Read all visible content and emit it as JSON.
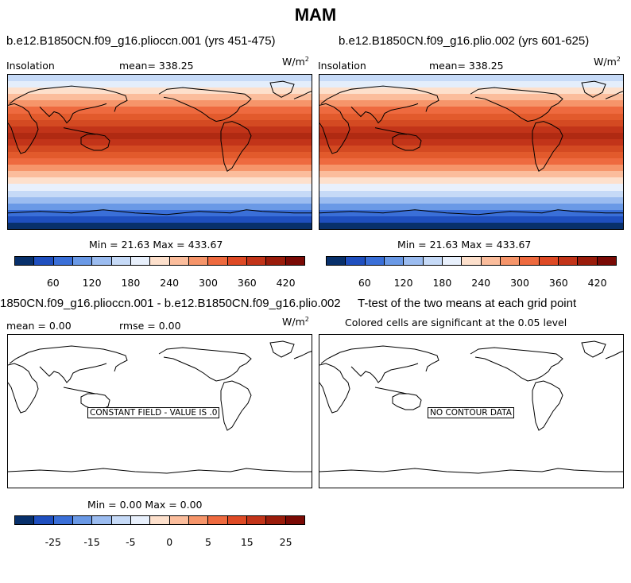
{
  "title": "MAM",
  "panels": {
    "p1": {
      "title": "b.e12.B1850CN.f09_g16.plioccn.001 (yrs 451-475)",
      "var": "Insolation",
      "mean": "mean=  338.25",
      "units": "W/m",
      "units_sup": "2",
      "minmax": "Min =   21.63 Max = 433.67"
    },
    "p2": {
      "title": "b.e12.B1850CN.f09_g16.plio.002 (yrs 601-625)",
      "var": "Insolation",
      "mean": "mean=  338.25",
      "units": "W/m",
      "units_sup": "2",
      "minmax": "Min =   21.63 Max = 433.67"
    },
    "p3": {
      "title": "1850CN.f09_g16.plioccn.001 - b.e12.B1850CN.f09_g16.plio.002",
      "mean": "mean =    0.00",
      "rmse": "rmse =    0.00",
      "units": "W/m",
      "units_sup": "2",
      "notice": "CONSTANT FIELD - VALUE IS .0",
      "minmax": "Min =    0.00 Max =    0.00"
    },
    "p4": {
      "title": "T-test of the two means at each grid point",
      "subtitle": "Colored cells are significant at the 0.05 level",
      "notice": "NO CONTOUR DATA"
    }
  },
  "colorbar1": {
    "colors": [
      "#08306b",
      "#1f4fbf",
      "#3a6fd8",
      "#6a99e6",
      "#9bbcf0",
      "#c6daf7",
      "#e8f0fc",
      "#fde0cc",
      "#fbbd9c",
      "#f6956a",
      "#ee6a3f",
      "#de4a25",
      "#c23419",
      "#9a1c0b",
      "#7a0a05"
    ],
    "ticks": [
      "60",
      "120",
      "180",
      "240",
      "300",
      "360",
      "420"
    ]
  },
  "colorbar2": {
    "colors": [
      "#08306b",
      "#1f4fbf",
      "#3a6fd8",
      "#6a99e6",
      "#9bbcf0",
      "#c6daf7",
      "#e8f0fc",
      "#fde0cc",
      "#fbbd9c",
      "#f6956a",
      "#ee6a3f",
      "#de4a25",
      "#c23419",
      "#9a1c0b",
      "#7a0a05"
    ],
    "ticks": [
      "-25",
      "-15",
      "-5",
      "0",
      "5",
      "15",
      "25"
    ]
  },
  "insolation_bands": [
    "#c6daf7",
    "#e4eefb",
    "#fde0cc",
    "#fbbd9c",
    "#f6956a",
    "#ee6a3f",
    "#e25a2c",
    "#d44a22",
    "#c23419",
    "#b02a12",
    "#c23419",
    "#d44a22",
    "#e25a2c",
    "#ee6a3f",
    "#f6956a",
    "#fbbd9c",
    "#fde0cc",
    "#e8f0fc",
    "#c6daf7",
    "#9bbcf0",
    "#6a99e6",
    "#3a6fd8",
    "#1f4fbf",
    "#08306b"
  ]
}
